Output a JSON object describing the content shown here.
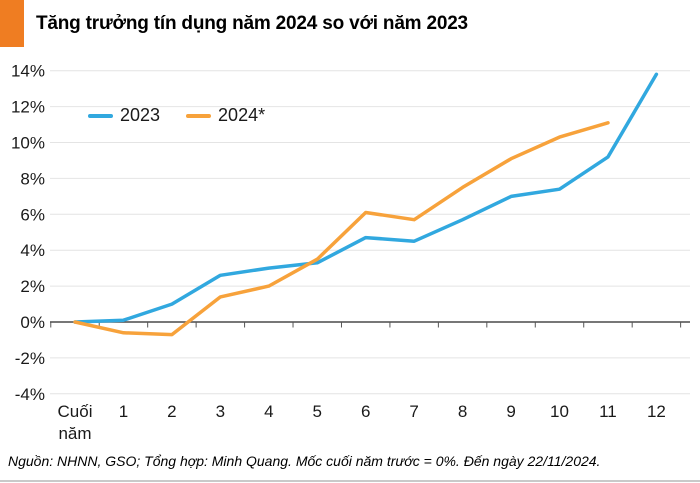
{
  "header": {
    "title": "Tăng trưởng tín dụng năm 2024 so với năm 2023",
    "accent_color": "#EF7D22"
  },
  "legend": {
    "items": [
      {
        "label": "2023",
        "color": "#31A8DF"
      },
      {
        "label": "2024*",
        "color": "#F7A23B"
      }
    ]
  },
  "chart_data": {
    "type": "line",
    "title": "Tăng trưởng tín dụng năm 2024 so với năm 2023",
    "categories": [
      "Cuối năm",
      "1",
      "2",
      "3",
      "4",
      "5",
      "6",
      "7",
      "8",
      "9",
      "10",
      "11",
      "12"
    ],
    "series": [
      {
        "name": "2023",
        "color": "#31A8DF",
        "values": [
          0,
          0.1,
          1.0,
          2.6,
          3.0,
          3.3,
          4.7,
          4.5,
          5.7,
          7.0,
          7.4,
          9.2,
          13.8
        ]
      },
      {
        "name": "2024*",
        "color": "#F7A23B",
        "values": [
          0,
          -0.6,
          -0.7,
          1.4,
          2.0,
          3.5,
          6.1,
          5.7,
          7.5,
          9.1,
          10.3,
          11.1
        ]
      }
    ],
    "xlabel": "",
    "ylabel": "",
    "ylim": [
      -4,
      14
    ],
    "ytick_step": 2,
    "ytick_labels": [
      "14%",
      "12%",
      "10%",
      "8%",
      "6%",
      "4%",
      "2%",
      "0%",
      "-2%",
      "-4%"
    ],
    "grid": "horizontal",
    "grid_color": "#e4e4e4",
    "axis_color": "#4a4a4a",
    "tick_color": "#555555",
    "legend_position": "top-left"
  },
  "footer": {
    "text": "Nguồn: NHNN, GSO; Tổng hợp: Minh Quang. Mốc cuối năm trước = 0%. Đến ngày 22/11/2024."
  }
}
